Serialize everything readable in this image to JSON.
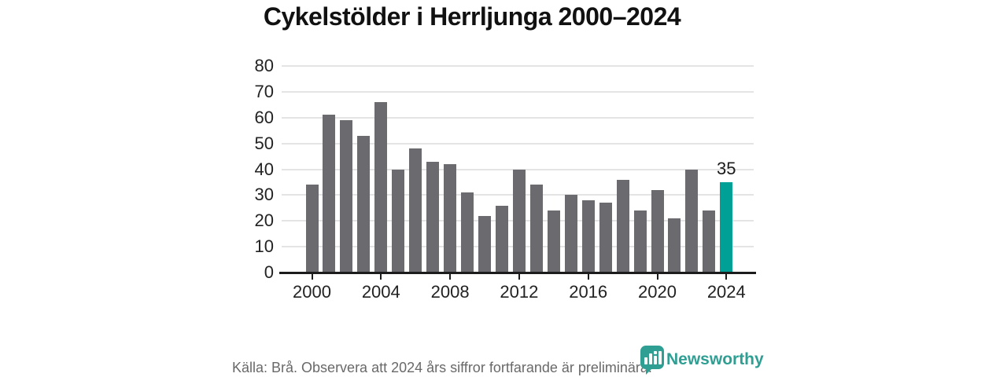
{
  "title": "Cykelstölder i Herrljunga 2000–2024",
  "chart_data": {
    "type": "bar",
    "categories": [
      2000,
      2001,
      2002,
      2003,
      2004,
      2005,
      2006,
      2007,
      2008,
      2009,
      2010,
      2011,
      2012,
      2013,
      2014,
      2015,
      2016,
      2017,
      2018,
      2019,
      2020,
      2021,
      2022,
      2023,
      2024
    ],
    "values": [
      34,
      61,
      59,
      53,
      66,
      40,
      48,
      43,
      42,
      31,
      22,
      26,
      40,
      34,
      24,
      30,
      28,
      27,
      36,
      24,
      32,
      21,
      40,
      24,
      35
    ],
    "title": "Cykelstölder i Herrljunga 2000–2024",
    "xlabel": "",
    "ylabel": "",
    "ylim": [
      0,
      80
    ],
    "yticks": [
      0,
      10,
      20,
      30,
      40,
      50,
      60,
      70,
      80
    ],
    "xticks": [
      2000,
      2004,
      2008,
      2012,
      2016,
      2020,
      2024
    ],
    "grid": "horizontal",
    "legend": "none",
    "bar_color": "#6a6a6f",
    "highlight_color": "#00a096",
    "highlight_index": 24,
    "annotation": {
      "index": 24,
      "text": "35"
    }
  },
  "footer": {
    "source_text": "Källa: Brå. Observera att 2024 års siffror fortfarande är preliminära.",
    "brand": {
      "name": "Newsworthy",
      "color": "#2f9e93",
      "icon": "newsworthy-pin-barchart-icon"
    }
  }
}
